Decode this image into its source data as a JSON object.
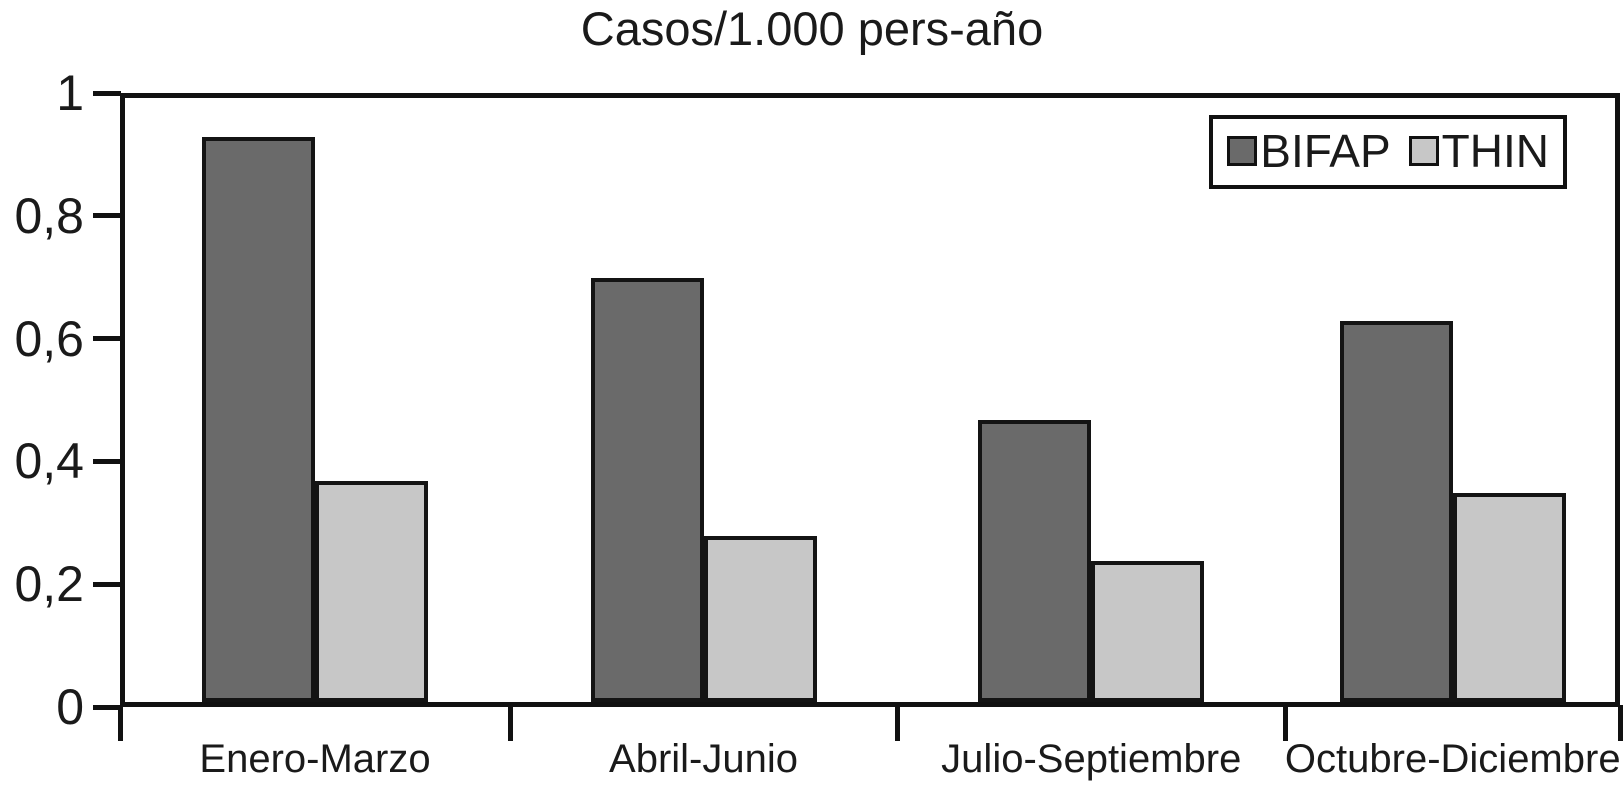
{
  "chart_data": {
    "type": "bar",
    "title": "Casos/1.000 pers-año",
    "xlabel": "",
    "ylabel": "",
    "categories": [
      "Enero-Marzo",
      "Abril-Junio",
      "Julio-Septiembre",
      "Octubre-Diciembre"
    ],
    "series": [
      {
        "name": "BIFAP",
        "color": "#6a6a6a",
        "values": [
          0.92,
          0.69,
          0.46,
          0.62
        ]
      },
      {
        "name": "THIN",
        "color": "#c7c7c7",
        "values": [
          0.36,
          0.27,
          0.23,
          0.34
        ]
      }
    ],
    "ylim": [
      0,
      1
    ],
    "y_ticks": [
      {
        "value": 0,
        "label": "0"
      },
      {
        "value": 0.2,
        "label": "0,2"
      },
      {
        "value": 0.4,
        "label": "0,4"
      },
      {
        "value": 0.6,
        "label": "0,6"
      },
      {
        "value": 0.8,
        "label": "0,8"
      },
      {
        "value": 1,
        "label": "1"
      }
    ],
    "grid": false,
    "legend_position": "top-right",
    "styles": {
      "bar_border": "#141414",
      "axis_color": "#111111",
      "background": "#ffffff",
      "text_color": "#1a1a1a"
    }
  }
}
